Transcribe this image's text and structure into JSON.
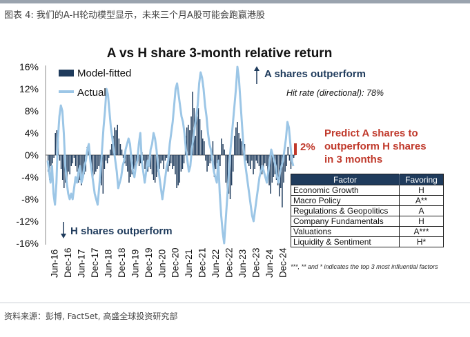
{
  "figure_caption": "图表 4: 我们的A-H轮动模型显示，未来三个月A股可能会跑赢港股",
  "source_note": "资料来源：彭博, FactSet, 高盛全球投资研究部",
  "colors": {
    "fitted": "#1f3b5c",
    "actual": "#9cc6e6",
    "predict": "#c0392b",
    "table_header": "#1f3b5c"
  },
  "chart_data": {
    "type": "bar+line",
    "title": "A vs H share 3-month relative return",
    "yaxis": {
      "ticks": [
        "16%",
        "12%",
        "8%",
        "4%",
        "0%",
        "-4%",
        "-8%",
        "-12%",
        "-16%"
      ],
      "ylim": [
        -16,
        16
      ],
      "unit": "%"
    },
    "xaxis": {
      "tick_labels": [
        "Jun-16",
        "Dec-16",
        "Jun-17",
        "Dec-17",
        "Jun-18",
        "Dec-18",
        "Jun-19",
        "Dec-19",
        "Jun-20",
        "Dec-20",
        "Jun-21",
        "Dec-21",
        "Jun-22",
        "Dec-22",
        "Jun-23",
        "Dec-23",
        "Jun-24",
        "Dec-24"
      ]
    },
    "legend": [
      "Model-fitted",
      "Actual"
    ],
    "annotations": {
      "a_outperform": "A shares outperform",
      "h_outperform": "H shares outperform",
      "hit_rate": "Hit rate (directional): 78%",
      "predict_value": "2%",
      "predict_text": [
        "Predict A shares to",
        "outperform H shares",
        "in 3 months"
      ],
      "footnote": "***, ** and * indicates the top 3 most influential factors"
    },
    "series": [
      {
        "name": "Model-fitted",
        "type": "bar",
        "values": [
          -3.0,
          -4.5,
          -2.0,
          -1.5,
          -0.5,
          4.0,
          4.5,
          2.5,
          -1.0,
          -2.5,
          -4.5,
          -6.0,
          -5.0,
          -4.5,
          -3.0,
          -3.5,
          -2.0,
          -1.5,
          -0.5,
          -2.0,
          -3.0,
          -5.0,
          -4.5,
          -5.5,
          -4.0,
          -3.5,
          -3.0,
          1.5,
          1.0,
          -1.0,
          -2.5,
          -4.0,
          -3.5,
          -3.0,
          -2.5,
          -2.0,
          -5.0,
          -5.5,
          -7.0,
          -2.5,
          -1.0,
          -1.5,
          -0.5,
          1.0,
          2.0,
          3.5,
          5.0,
          4.5,
          5.5,
          3.0,
          2.0,
          1.0,
          -0.5,
          -1.5,
          -2.0,
          -3.0,
          -5.0,
          -4.0,
          -3.5,
          -2.5,
          -3.5,
          -1.5,
          -1.0,
          -2.0,
          -1.5,
          0.5,
          -1.0,
          -2.5,
          -2.0,
          -3.0,
          -1.5,
          -2.5,
          -3.5,
          -4.5,
          -5.0,
          -4.0,
          -3.0,
          -2.5,
          -1.5,
          -1.0,
          -2.5,
          -1.0,
          -0.5,
          -3.0,
          -2.0,
          -1.5,
          -2.5,
          -2.0,
          -3.5,
          -6.0,
          -5.5,
          -5.0,
          -3.0,
          -2.5,
          -1.5,
          3.5,
          5.0,
          5.5,
          4.5,
          7.0,
          11.5,
          8.5,
          3.5,
          7.0,
          8.5,
          6.5,
          4.5,
          3.0,
          2.5,
          -1.0,
          -3.0,
          -2.0,
          -1.5,
          -1.0,
          2.5,
          -4.0,
          -2.5,
          -1.5,
          -3.0,
          -2.0,
          3.0,
          2.0,
          1.0,
          -5.0,
          -6.5,
          -7.0,
          -8.0,
          -5.5,
          -3.0,
          3.5,
          5.0,
          6.0,
          4.0,
          3.0,
          2.5,
          2.0,
          2.0,
          -1.0,
          -1.5,
          -2.0,
          -2.5,
          -1.0,
          -3.5,
          -2.5,
          -1.0,
          -1.5,
          -2.0,
          -3.0,
          -3.5,
          -2.5,
          -1.5,
          -2.0,
          -3.0,
          -5.5,
          -7.0,
          -5.0,
          -4.0,
          -3.5,
          -4.5,
          -5.5,
          -7.5,
          -6.0,
          -9.5,
          -5.0,
          -3.0,
          -2.0,
          1.5,
          -1.0,
          -2.5,
          -1.5,
          -0.5
        ]
      },
      {
        "name": "Actual",
        "type": "line",
        "values": [
          -1,
          -3,
          -5,
          -2,
          -7,
          -9,
          -5,
          3,
          7,
          9,
          8,
          4,
          -2,
          -5,
          -7,
          -8,
          -7,
          -8,
          -6,
          -4,
          -5,
          -3,
          -2,
          -5,
          -4,
          -2,
          -1,
          1,
          2,
          -1,
          -3,
          -5,
          -7,
          -8,
          -9,
          -6,
          -3,
          1,
          5,
          8,
          12,
          11,
          8,
          5,
          3,
          1,
          -1,
          -3,
          -6,
          -5,
          -4,
          -2,
          -1,
          1,
          2,
          3,
          2,
          -1,
          -3,
          -4,
          -2,
          -1,
          2,
          4,
          -1,
          -3,
          -5,
          -3,
          -1,
          -2,
          1,
          2,
          4,
          3,
          1,
          -2,
          -4,
          -6,
          -8,
          -6,
          -4,
          -2,
          -1,
          2,
          4,
          6,
          9,
          12,
          13,
          11,
          9,
          7,
          6,
          4,
          1,
          -1,
          -3,
          -2,
          1,
          3,
          5,
          7,
          9,
          13,
          15,
          14,
          12,
          9,
          7,
          4,
          2,
          1,
          -1,
          -3,
          -4,
          -5,
          -1,
          -7,
          -11,
          -14,
          -16,
          -12,
          -8,
          -4,
          0,
          3,
          6,
          9,
          12,
          16,
          14,
          10,
          6,
          2,
          -1,
          -3,
          -5,
          -7,
          -9,
          -11,
          -12,
          -10,
          -8,
          -6,
          -4,
          -3,
          -2,
          -3,
          -4,
          -5,
          -3,
          -1,
          1,
          0,
          -1,
          -2,
          -4,
          -5,
          -3,
          -2,
          -1,
          1,
          3,
          6,
          5,
          2,
          -1,
          -2
        ]
      }
    ]
  },
  "factor_table": {
    "headers": [
      "Factor",
      "Favoring"
    ],
    "rows": [
      [
        "Economic Growth",
        "H"
      ],
      [
        "Macro Policy",
        "A**"
      ],
      [
        "Regulations & Geopolitics",
        "A"
      ],
      [
        "Company Fundamentals",
        "H"
      ],
      [
        "Valuations",
        "A***"
      ],
      [
        "Liquidity & Sentiment",
        "H*"
      ]
    ]
  }
}
